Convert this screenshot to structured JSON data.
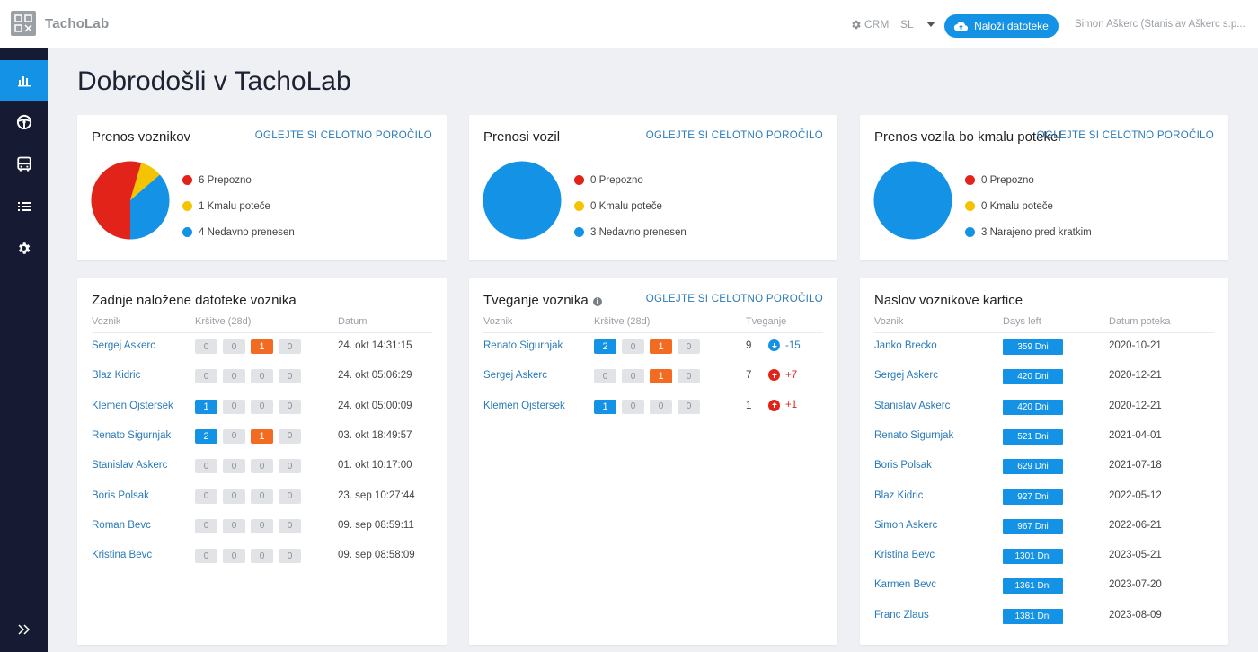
{
  "header": {
    "logo_text": "TachoLab",
    "crm_label": "CRM",
    "language": "SL",
    "upload_label": "Naloži datoteke",
    "user": "Simon Aškerc (Stanislav Aškerc s.p..."
  },
  "sidebar": {
    "items": [
      {
        "icon": "bar-chart-icon",
        "active": true
      },
      {
        "icon": "steering-wheel-icon",
        "active": false
      },
      {
        "icon": "bus-icon",
        "active": false
      },
      {
        "icon": "list-icon",
        "active": false
      },
      {
        "icon": "gear-icon",
        "active": false
      }
    ],
    "expand_icon": "double-chevron-right-icon"
  },
  "page_title": "Dobrodošli v TachoLab",
  "colors": {
    "red": "#e2231a",
    "yellow": "#f5c400",
    "blue": "#1492e6",
    "orange": "#f36b20"
  },
  "summary_cards": [
    {
      "title": "Prenos voznikov",
      "link": "OGLEJTE SI CELOTNO POROČILO",
      "legend": [
        "6 Prepozno",
        "1 Kmalu poteče",
        "4 Nedavno prenesen"
      ],
      "counts": [
        6,
        1,
        4
      ]
    },
    {
      "title": "Prenosi vozil",
      "link": "OGLEJTE SI CELOTNO POROČILO",
      "legend": [
        "0 Prepozno",
        "0 Kmalu poteče",
        "3 Nedavno prenesen"
      ],
      "counts": [
        0,
        0,
        3
      ]
    },
    {
      "title": "Prenos vozila bo kmalu potekel",
      "link": "OGLEJTE SI CELOTNO POROČILO",
      "legend": [
        "0 Prepozno",
        "0 Kmalu poteče",
        "3 Narajeno pred kratkim"
      ],
      "counts": [
        0,
        0,
        3
      ]
    }
  ],
  "uploads": {
    "title": "Zadnje naložene datoteke voznika",
    "headers": [
      "Voznik",
      "Kršitve (28d)",
      "Datum"
    ],
    "rows": [
      {
        "name": "Sergej Askerc",
        "badges": [
          "0",
          "0",
          "1",
          "0"
        ],
        "date": "24. okt 14:31:15"
      },
      {
        "name": "Blaz Kidric",
        "badges": [
          "0",
          "0",
          "0",
          "0"
        ],
        "date": "24. okt 05:06:29"
      },
      {
        "name": "Klemen Ojstersek",
        "badges": [
          "1",
          "0",
          "0",
          "0"
        ],
        "date": "24. okt 05:00:09"
      },
      {
        "name": "Renato Sigurnjak",
        "badges": [
          "2",
          "0",
          "1",
          "0"
        ],
        "date": "03. okt 18:49:57"
      },
      {
        "name": "Stanislav Askerc",
        "badges": [
          "0",
          "0",
          "0",
          "0"
        ],
        "date": "01. okt 10:17:00"
      },
      {
        "name": "Boris Polsak",
        "badges": [
          "0",
          "0",
          "0",
          "0"
        ],
        "date": "23. sep 10:27:44"
      },
      {
        "name": "Roman Bevc",
        "badges": [
          "0",
          "0",
          "0",
          "0"
        ],
        "date": "09. sep 08:59:11"
      },
      {
        "name": "Kristina Bevc",
        "badges": [
          "0",
          "0",
          "0",
          "0"
        ],
        "date": "09. sep 08:58:09"
      }
    ]
  },
  "risk": {
    "title": "Tveganje voznika",
    "link": "OGLEJTE SI CELOTNO POROČILO",
    "headers": [
      "Voznik",
      "Kršitve (28d)",
      "Tveganje"
    ],
    "rows": [
      {
        "name": "Renato Sigurnjak",
        "badges": [
          "2",
          "0",
          "1",
          "0"
        ],
        "score": "9",
        "trend": "-15",
        "direction": "down"
      },
      {
        "name": "Sergej Askerc",
        "badges": [
          "0",
          "0",
          "1",
          "0"
        ],
        "score": "7",
        "trend": "+7",
        "direction": "up"
      },
      {
        "name": "Klemen Ojstersek",
        "badges": [
          "1",
          "0",
          "0",
          "0"
        ],
        "score": "1",
        "trend": "+1",
        "direction": "up"
      }
    ]
  },
  "cards": {
    "title": "Naslov voznikove kartice",
    "headers": [
      "Voznik",
      "Days left",
      "Datum poteka"
    ],
    "rows": [
      {
        "name": "Janko Brecko",
        "days": "359 Dni",
        "date": "2020-10-21"
      },
      {
        "name": "Sergej Askerc",
        "days": "420 Dni",
        "date": "2020-12-21"
      },
      {
        "name": "Stanislav Askerc",
        "days": "420 Dni",
        "date": "2020-12-21"
      },
      {
        "name": "Renato Sigurnjak",
        "days": "521 Dni",
        "date": "2021-04-01"
      },
      {
        "name": "Boris Polsak",
        "days": "629 Dni",
        "date": "2021-07-18"
      },
      {
        "name": "Blaz Kidric",
        "days": "927 Dni",
        "date": "2022-05-12"
      },
      {
        "name": "Simon Askerc",
        "days": "967 Dni",
        "date": "2022-06-21"
      },
      {
        "name": "Kristina Bevc",
        "days": "1301 Dni",
        "date": "2023-05-21"
      },
      {
        "name": "Karmen Bevc",
        "days": "1361 Dni",
        "date": "2023-07-20"
      },
      {
        "name": "Franc Zlaus",
        "days": "1381 Dni",
        "date": "2023-08-09"
      }
    ]
  }
}
